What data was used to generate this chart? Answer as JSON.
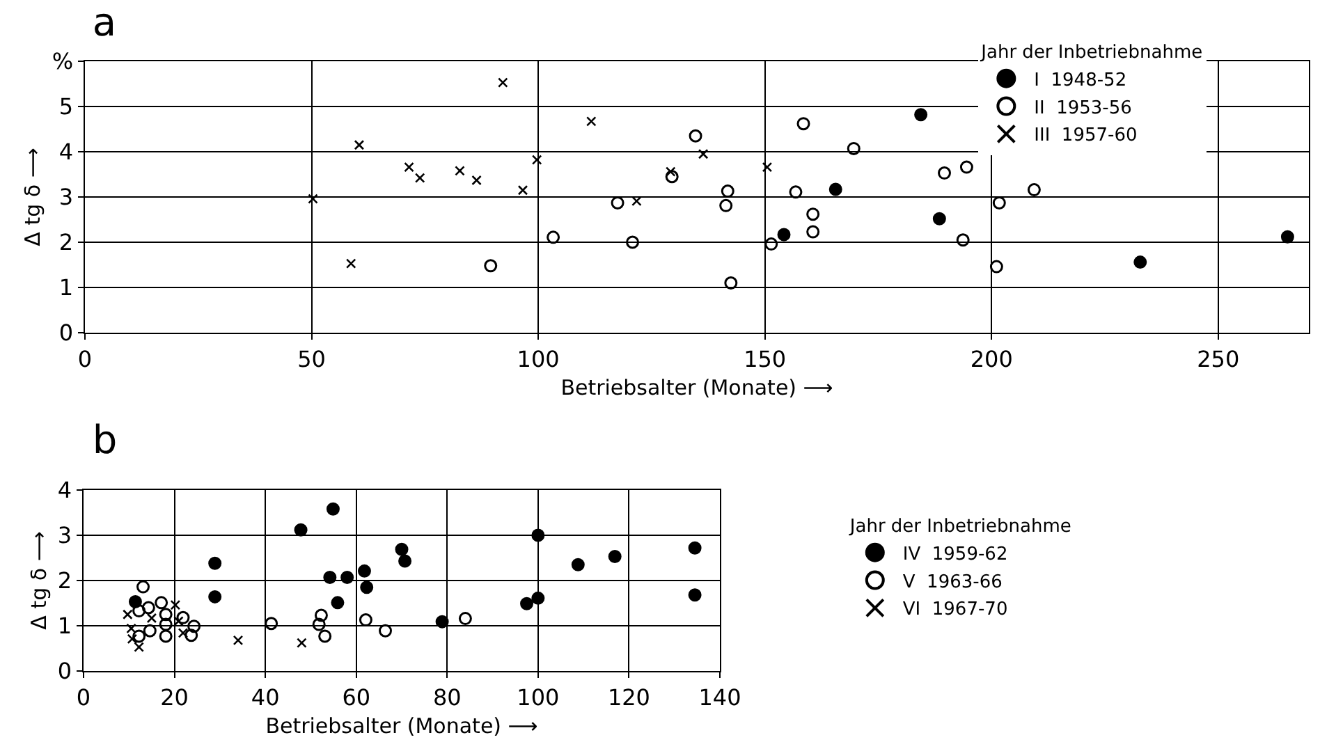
{
  "chart_data": [
    {
      "type": "scatter",
      "title": "a",
      "xlabel": "Betriebsalter (Monate) ⟶",
      "ylabel": "Δ tg δ ⟶",
      "legend_title": "Jahr der Inbetriebnahme",
      "xlim": [
        0,
        270
      ],
      "xticks": [
        0,
        50,
        100,
        150,
        200,
        250
      ],
      "ylim": [
        0,
        6
      ],
      "yticks": [
        0,
        1,
        2,
        3,
        4,
        5,
        {
          "value": 6,
          "label": "%"
        }
      ],
      "grid": true,
      "legend": "top right",
      "series": [
        {
          "name": "I  1948-52",
          "color": "#000000",
          "marker": "circle",
          "x": [
            154.2,
            165.6,
            184.4,
            188.5,
            232.8,
            265.3
          ],
          "values": [
            2.17,
            3.17,
            4.82,
            2.52,
            1.56,
            2.12
          ]
        },
        {
          "name": "II  1953-56",
          "color": "#000000",
          "marker": "circle-open",
          "x": [
            89.5,
            103.3,
            117.5,
            120.8,
            129.5,
            134.7,
            141.8,
            141.4,
            142.5,
            151.4,
            156.8,
            158.5,
            160.6,
            160.6,
            169.6,
            189.6,
            194.5,
            193.7,
            201.7,
            201.1,
            209.4
          ],
          "values": [
            1.48,
            2.11,
            2.87,
            2.0,
            3.45,
            4.35,
            3.13,
            2.81,
            1.1,
            1.96,
            3.11,
            4.62,
            2.62,
            2.23,
            4.07,
            3.53,
            3.66,
            2.05,
            2.87,
            1.46,
            3.16
          ]
        },
        {
          "name": "III  1957-60",
          "color": "#000000",
          "marker": "cross",
          "x": [
            50.3,
            58.7,
            60.5,
            71.5,
            73.9,
            82.7,
            86.4,
            92.2,
            96.6,
            99.7,
            111.7,
            121.7,
            129.2,
            136.4,
            150.5
          ],
          "values": [
            2.96,
            1.53,
            4.15,
            3.66,
            3.42,
            3.58,
            3.37,
            5.53,
            3.15,
            3.82,
            4.67,
            2.91,
            3.56,
            3.95,
            3.66
          ]
        }
      ]
    },
    {
      "type": "scatter",
      "title": "b",
      "xlabel": "Betriebsalter (Monate) ⟶",
      "ylabel": "Δ tg δ ⟶",
      "legend_title": "Jahr der Inbetriebnahme",
      "xlim": [
        0,
        140
      ],
      "xticks": [
        0,
        20,
        40,
        60,
        80,
        100,
        120,
        140
      ],
      "ylim": [
        0,
        4
      ],
      "yticks": [
        0,
        1,
        2,
        3,
        4
      ],
      "grid": true,
      "legend": "right",
      "series": [
        {
          "name": "IV  1959-62",
          "color": "#000000",
          "marker": "circle",
          "x": [
            11.4,
            28.9,
            28.9,
            47.8,
            54.9,
            54.2,
            58.0,
            55.9,
            61.8,
            62.3,
            70.0,
            70.7,
            78.9,
            97.5,
            100.0,
            100.0,
            108.8,
            116.9,
            134.5,
            134.5
          ],
          "values": [
            1.53,
            2.38,
            1.64,
            3.12,
            3.58,
            2.07,
            2.07,
            1.51,
            2.21,
            1.85,
            2.69,
            2.43,
            1.09,
            1.49,
            1.61,
            3.0,
            2.35,
            2.53,
            2.72,
            1.68
          ]
        },
        {
          "name": "V  1963-66",
          "color": "#000000",
          "marker": "circle-open",
          "x": [
            13.1,
            12.2,
            17.1,
            14.3,
            18.1,
            21.9,
            18.1,
            24.3,
            14.6,
            12.2,
            18.1,
            23.7,
            41.3,
            52.3,
            51.8,
            53.1,
            62.1,
            66.4,
            84.0
          ],
          "values": [
            1.86,
            1.33,
            1.51,
            1.4,
            1.25,
            1.18,
            1.03,
            0.99,
            0.89,
            0.77,
            0.77,
            0.79,
            1.05,
            1.23,
            1.03,
            0.77,
            1.13,
            0.89,
            1.16
          ]
        },
        {
          "name": "VI  1967-70",
          "color": "#000000",
          "marker": "cross",
          "x": [
            9.7,
            10.5,
            10.7,
            12.2,
            15.0,
            20.2,
            20.9,
            21.9,
            34.0,
            48.0
          ],
          "values": [
            1.25,
            0.94,
            0.71,
            0.53,
            1.17,
            1.46,
            1.1,
            0.84,
            0.68,
            0.62
          ]
        }
      ]
    }
  ]
}
